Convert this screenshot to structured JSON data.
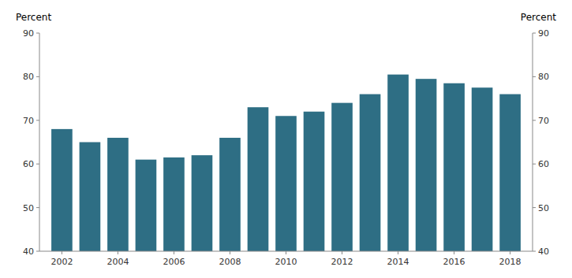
{
  "chart_data": {
    "type": "bar",
    "x": [
      2002,
      2003,
      2004,
      2005,
      2006,
      2007,
      2008,
      2009,
      2010,
      2011,
      2012,
      2013,
      2014,
      2015,
      2016,
      2017,
      2018
    ],
    "values": [
      68.0,
      65.0,
      66.0,
      61.0,
      61.5,
      62.0,
      66.0,
      73.0,
      71.0,
      72.0,
      74.0,
      76.0,
      80.5,
      79.5,
      78.5,
      77.5,
      76.0
    ],
    "color": "#2e6e84",
    "y_label": "Percent",
    "y2_label": "Percent",
    "xlim": [
      2001.2,
      2018.8
    ],
    "xticks": [
      2002,
      2004,
      2006,
      2008,
      2010,
      2012,
      2014,
      2016,
      2018
    ],
    "ylim": [
      40,
      90
    ],
    "yticks": [
      40,
      50,
      60,
      70,
      80,
      90
    ],
    "y2lim": [
      40,
      90
    ],
    "y2ticks": [
      40,
      50,
      60,
      70,
      80,
      90
    ],
    "grid": false
  }
}
